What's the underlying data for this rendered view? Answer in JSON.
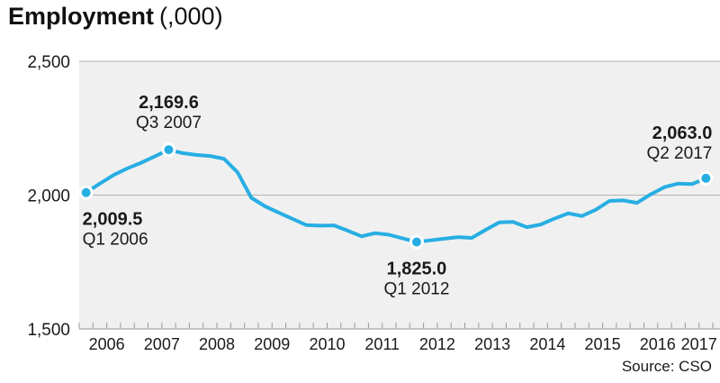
{
  "title": {
    "text": "Employment",
    "unit": "(,000)"
  },
  "source": "Source: CSO",
  "colors": {
    "line": "#27aee3",
    "marker": "#27aee3",
    "marker_ring": "#ffffff",
    "plot_background": "#f0f0f0",
    "top_border": "#c9c9c9",
    "gridline": "#b3b3b3",
    "axis_line": "#b3b3b3",
    "tick": "#999999",
    "annotation_value": "#111111",
    "annotation_period": "#333333"
  },
  "chart_data": {
    "type": "line",
    "title": "Employment (,000)",
    "xlabel": "",
    "ylabel": "",
    "frequency": "quarterly",
    "ylim": [
      1500,
      2500
    ],
    "grid": "horizontal line at 2,000 only",
    "legend_position": "none",
    "y_ticks": [
      {
        "value": 1500,
        "label": "1,500"
      },
      {
        "value": 2000,
        "label": "2,000"
      },
      {
        "value": 2500,
        "label": "2,500"
      }
    ],
    "gridlines_y": [
      2000
    ],
    "x_tick_labels": [
      "2006",
      "2007",
      "2008",
      "2009",
      "2010",
      "2011",
      "2012",
      "2013",
      "2014",
      "2015",
      "2016",
      "2017"
    ],
    "x_quarters": [
      "Q1 2006",
      "Q2 2006",
      "Q3 2006",
      "Q4 2006",
      "Q1 2007",
      "Q2 2007",
      "Q3 2007",
      "Q4 2007",
      "Q1 2008",
      "Q2 2008",
      "Q3 2008",
      "Q4 2008",
      "Q1 2009",
      "Q2 2009",
      "Q3 2009",
      "Q4 2009",
      "Q1 2010",
      "Q2 2010",
      "Q3 2010",
      "Q4 2010",
      "Q1 2011",
      "Q2 2011",
      "Q3 2011",
      "Q4 2011",
      "Q1 2012",
      "Q2 2012",
      "Q3 2012",
      "Q4 2012",
      "Q1 2013",
      "Q2 2013",
      "Q3 2013",
      "Q4 2013",
      "Q1 2014",
      "Q2 2014",
      "Q3 2014",
      "Q4 2014",
      "Q1 2015",
      "Q2 2015",
      "Q3 2015",
      "Q4 2015",
      "Q1 2016",
      "Q2 2016",
      "Q3 2016",
      "Q4 2016",
      "Q1 2017",
      "Q2 2017"
    ],
    "values": [
      2009.5,
      2043,
      2075,
      2100,
      2121,
      2145,
      2169.6,
      2157,
      2150,
      2146,
      2136,
      2085,
      1990,
      1958,
      1934,
      1911,
      1888,
      1886,
      1887,
      1867,
      1846,
      1858,
      1852,
      1838,
      1825.0,
      1831,
      1837,
      1843,
      1840,
      1870,
      1898,
      1900,
      1880,
      1890,
      1912,
      1932,
      1922,
      1945,
      1978,
      1980,
      1971,
      2003,
      2030,
      2043,
      2041,
      2063.0
    ],
    "annotations": [
      {
        "index": 0,
        "value_label": "2,009.5",
        "period_label": "Q1 2006",
        "placement": "below-left"
      },
      {
        "index": 6,
        "value_label": "2,169.6",
        "period_label": "Q3 2007",
        "placement": "above-center"
      },
      {
        "index": 24,
        "value_label": "1,825.0",
        "period_label": "Q1 2012",
        "placement": "below-center"
      },
      {
        "index": 45,
        "value_label": "2,063.0",
        "period_label": "Q2 2017",
        "placement": "above-right"
      }
    ]
  }
}
